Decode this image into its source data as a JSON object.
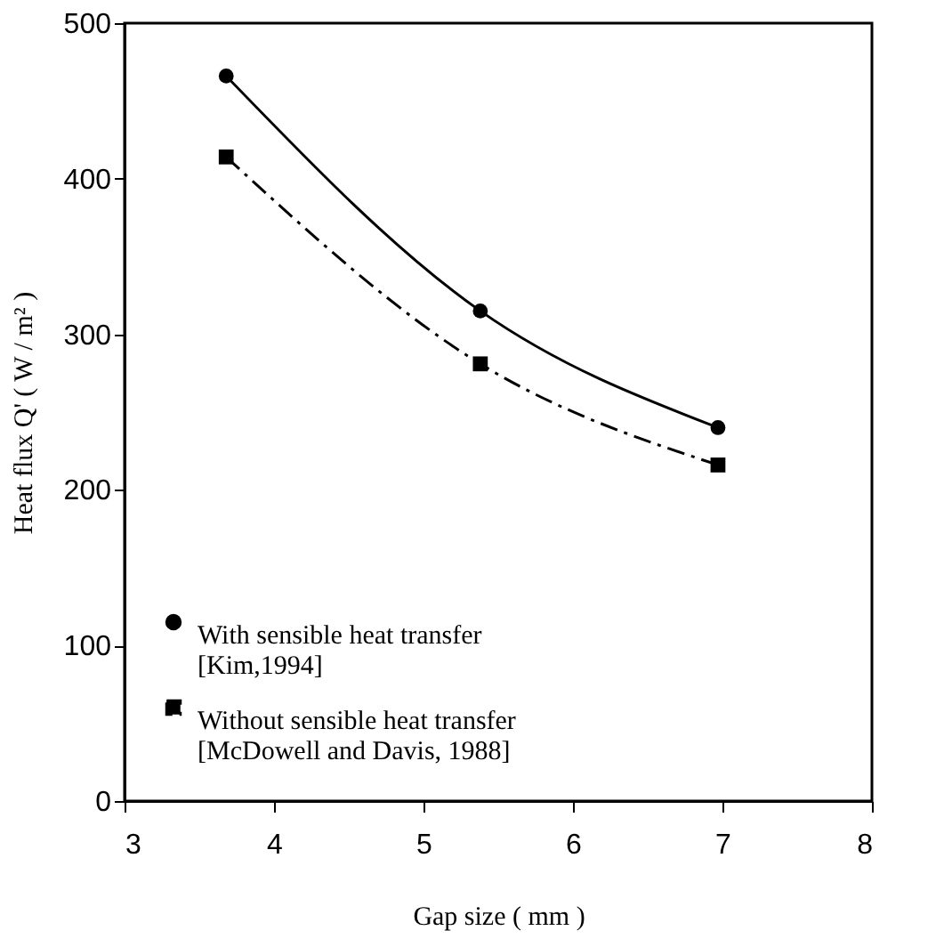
{
  "chart_data": {
    "type": "line",
    "xlabel": "Gap size ( mm )",
    "ylabel": "Heat flux Q' ( W / m² )",
    "x": [
      3.68,
      5.38,
      6.97
    ],
    "series": [
      {
        "name": "With sensible heat transfer\n[Kim,1994]",
        "color": "#000000",
        "values": [
          466,
          315,
          240
        ],
        "marker": "circle",
        "line_style": "solid"
      },
      {
        "name": "Without sensible heat transfer\n[McDowell and Davis, 1988]",
        "color": "#000000",
        "values": [
          414,
          281,
          216
        ],
        "marker": "square",
        "line_style": "dashed"
      }
    ],
    "xlim": [
      3,
      8
    ],
    "xticks": [
      3,
      4,
      5,
      6,
      7,
      8
    ],
    "ylim": [
      0,
      500
    ],
    "yticks": [
      0,
      100,
      200,
      300,
      400,
      500
    ],
    "grid": false,
    "legend": "bottom left"
  }
}
